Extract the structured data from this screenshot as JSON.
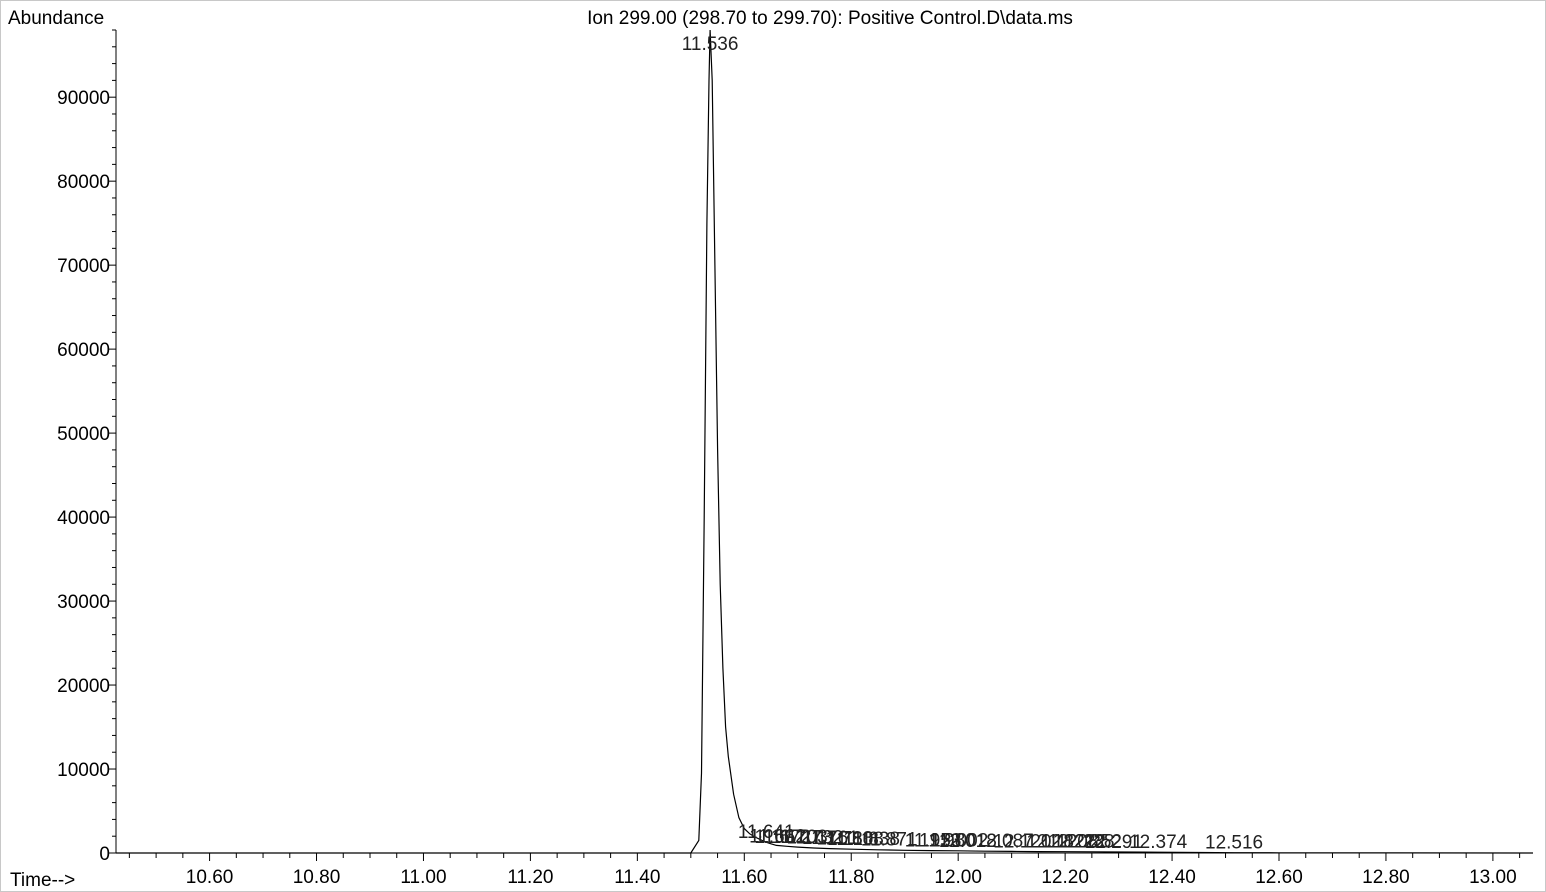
{
  "chart_data": {
    "type": "line",
    "title": "Ion 299.00 (298.70 to 299.70): Positive Control.D\\data.ms",
    "ylabel": "Abundance",
    "xlabel": "Time-->",
    "xlim": [
      10.425,
      13.075
    ],
    "ylim": [
      0,
      98000
    ],
    "grid": false,
    "x_ticks": [
      "10.60",
      "10.80",
      "11.00",
      "11.20",
      "11.40",
      "11.60",
      "11.80",
      "12.00",
      "12.20",
      "12.40",
      "12.60",
      "12.80",
      "13.00"
    ],
    "y_ticks": [
      "0",
      "10000",
      "20000",
      "30000",
      "40000",
      "50000",
      "60000",
      "70000",
      "80000",
      "90000"
    ],
    "series": [
      {
        "x": [
          10.425,
          11.5,
          11.515,
          11.52,
          11.525,
          11.53,
          11.534,
          11.536,
          11.54,
          11.545,
          11.55,
          11.555,
          11.56,
          11.565,
          11.57,
          11.58,
          11.59,
          11.6,
          11.61,
          11.62,
          11.63,
          11.64,
          11.65,
          11.66,
          11.68,
          11.7,
          11.73,
          11.76,
          11.8,
          11.85,
          11.9,
          11.95,
          12.0,
          12.05,
          12.1,
          12.15,
          12.2,
          12.25,
          12.3,
          12.374,
          12.45,
          12.516,
          12.6,
          12.8,
          13.075
        ],
        "y": [
          0,
          0,
          1500,
          9500,
          40000,
          75000,
          92000,
          98000,
          92000,
          70000,
          48000,
          32000,
          22000,
          15000,
          11500,
          7000,
          4200,
          2900,
          2300,
          1900,
          1600,
          1300,
          1100,
          900,
          800,
          700,
          600,
          520,
          450,
          380,
          320,
          290,
          260,
          220,
          190,
          170,
          160,
          140,
          120,
          90,
          60,
          40,
          20,
          10,
          0
        ]
      }
    ],
    "peak_labels": [
      {
        "x": 11.536,
        "y": 98000,
        "text": "11.536"
      },
      {
        "x": 11.641,
        "y": 1300,
        "text": "11.641"
      },
      {
        "x": 11.662,
        "y": 800,
        "text": "11.662"
      },
      {
        "x": 11.672,
        "y": 700,
        "text": "11.672"
      },
      {
        "x": 11.703,
        "y": 700,
        "text": "11.703"
      },
      {
        "x": 11.732,
        "y": 650,
        "text": "11.732"
      },
      {
        "x": 11.761,
        "y": 600,
        "text": "11.761"
      },
      {
        "x": 11.788,
        "y": 550,
        "text": "11.788"
      },
      {
        "x": 11.808,
        "y": 500,
        "text": "11.808"
      },
      {
        "x": 11.838,
        "y": 450,
        "text": "11.838"
      },
      {
        "x": 11.871,
        "y": 400,
        "text": "11.871"
      },
      {
        "x": 11.953,
        "y": 320,
        "text": "11.953"
      },
      {
        "x": 11.98,
        "y": 300,
        "text": "11.980"
      },
      {
        "x": 12.002,
        "y": 280,
        "text": "12.002"
      },
      {
        "x": 12.018,
        "y": 260,
        "text": "12.018"
      },
      {
        "x": 12.087,
        "y": 220,
        "text": "12.087"
      },
      {
        "x": 12.12,
        "y": 200,
        "text": "12.120"
      },
      {
        "x": 12.182,
        "y": 180,
        "text": "12.182"
      },
      {
        "x": 12.208,
        "y": 170,
        "text": "12.208"
      },
      {
        "x": 12.222,
        "y": 160,
        "text": "12.222"
      },
      {
        "x": 12.238,
        "y": 150,
        "text": "12.238"
      },
      {
        "x": 12.252,
        "y": 150,
        "text": "12.252"
      },
      {
        "x": 12.291,
        "y": 130,
        "text": "12.291"
      },
      {
        "x": 12.374,
        "y": 90,
        "text": "12.374"
      },
      {
        "x": 12.516,
        "y": 40,
        "text": "12.516"
      }
    ]
  }
}
